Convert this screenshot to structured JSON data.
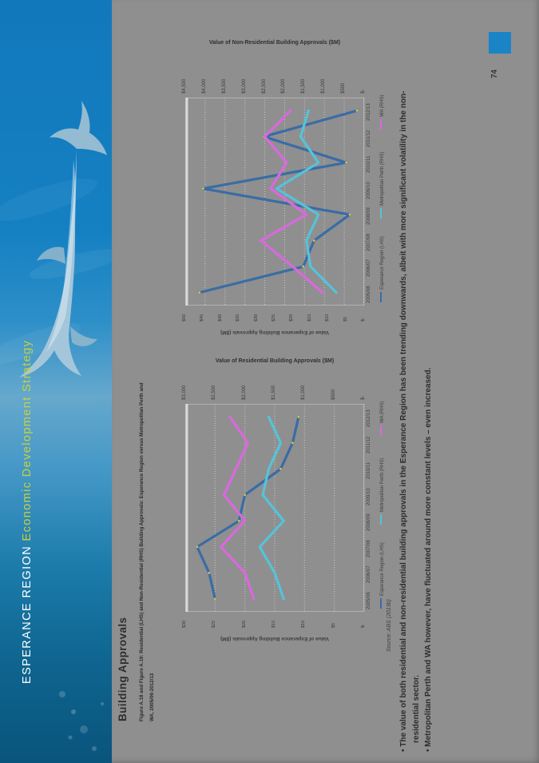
{
  "sidebar": {
    "title_region": "ESPERANCE REGION",
    "title_strategy": "Economic Development Strategy",
    "region_color": "#ffffff",
    "strategy_color": "#c9d23c"
  },
  "page": {
    "background_color": "#8f8f8f",
    "corner_color": "#1b84c7",
    "number": "74",
    "heading": "Building Approvals",
    "caption_lines": [
      "Figure A.18 and Figure A.19: Residential (LHS) and Non-Residential (RHS) Building Approvals: Esperance Region versus Metropolitan Perth and",
      "WA, 2005/06-2012/13"
    ],
    "bullets": [
      "The value of both residential and non-residential building approvals in the Esperance Region has been trending downwards, albeit with more significant volatility in the non-residential sector.",
      "Metropolitan Perth and WA however, have fluctuated around more constant levels – even increased."
    ],
    "source": "Source: ABS (2013b)"
  },
  "chart_data": [
    {
      "type": "line",
      "title": "Value of Non-Residential Building Approvals ($M)",
      "orientation": "rotated-90deg-ccw",
      "grid": true,
      "legend_position": "right-of-plot-rotated",
      "categories": [
        "2005/06",
        "2006/07",
        "2007/08",
        "2008/09",
        "2009/10",
        "2010/11",
        "2011/12",
        "2012/13"
      ],
      "lhs_axis": {
        "title": "Value of Esperance Building Approvals ($M)",
        "max": 50,
        "ticks": [
          "$50",
          "$45",
          "$40",
          "$35",
          "$30",
          "$25",
          "$20",
          "$15",
          "$10",
          "$5",
          "$-"
        ]
      },
      "rhs_axis": {
        "max": 4500,
        "ticks": [
          "$4,500",
          "$4,000",
          "$3,500",
          "$3,000",
          "$2,500",
          "$2,000",
          "$1,500",
          "$1,000",
          "$500",
          "$-"
        ]
      },
      "series": [
        {
          "name": "Esperance Region (LHS)",
          "axis": "lhs",
          "color": "#3a6ca5",
          "values": [
            46,
            17,
            14,
            4,
            45,
            5,
            28,
            2
          ]
        },
        {
          "name": "Metropolitan Perth (RHS)",
          "axis": "rhs",
          "color": "#55c3da",
          "values": [
            700,
            1350,
            1450,
            1150,
            2200,
            1150,
            1600,
            1400
          ]
        },
        {
          "name": "WA (RHS)",
          "axis": "rhs",
          "color": "#d969de",
          "values": [
            1050,
            1800,
            2600,
            1450,
            2350,
            1950,
            2500,
            1850
          ]
        }
      ]
    },
    {
      "type": "line",
      "title": "Value of Residential Building Approvals ($M)",
      "orientation": "rotated-90deg-ccw",
      "grid": true,
      "legend_position": "right-of-plot-rotated",
      "categories": [
        "2005/06",
        "2006/07",
        "2007/08",
        "2008/09",
        "2009/10",
        "2010/11",
        "2011/12",
        "2012/13"
      ],
      "lhs_axis": {
        "title": "Value of Esperance Building Approvals ($M)",
        "max": 30,
        "ticks": [
          "$30",
          "$25",
          "$20",
          "$15",
          "$10",
          "$5",
          "$-"
        ]
      },
      "rhs_axis": {
        "max": 3000,
        "ticks": [
          "$3,000",
          "$2,500",
          "$2,000",
          "$1,500",
          "$1,000",
          "$500",
          "$-"
        ]
      },
      "series": [
        {
          "name": "Esperance Region (LHS)",
          "axis": "lhs",
          "color": "#3a6ca5",
          "values": [
            25,
            26,
            28,
            21,
            20,
            14,
            12,
            11
          ]
        },
        {
          "name": "Metropolitan Perth (RHS)",
          "axis": "rhs",
          "color": "#55c3da",
          "values": [
            1350,
            1500,
            1750,
            1350,
            1700,
            1600,
            1400,
            1600
          ]
        },
        {
          "name": "WA (RHS)",
          "axis": "rhs",
          "color": "#d969de",
          "values": [
            1850,
            2000,
            2400,
            2000,
            2350,
            2150,
            1950,
            2250
          ]
        }
      ]
    }
  ]
}
